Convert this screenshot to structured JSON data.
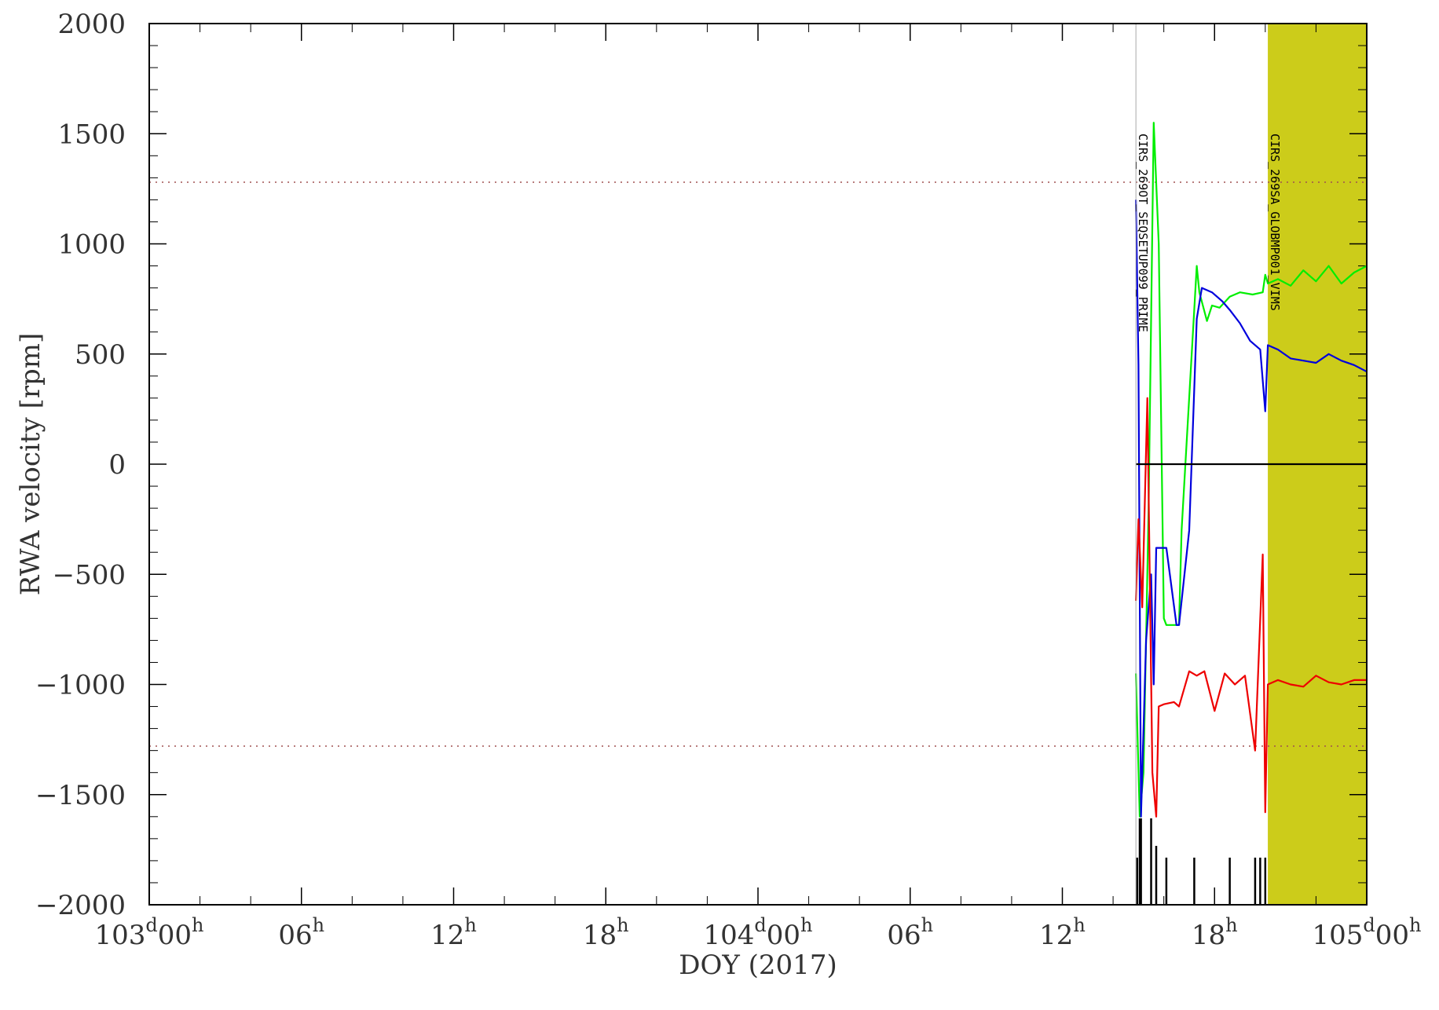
{
  "chart_data": {
    "type": "line",
    "title": "",
    "xlabel": "DOY (2017)",
    "ylabel": "RWA velocity [rpm]",
    "x_unit": "hours since 103d00h",
    "xlim": [
      0,
      48
    ],
    "ylim": [
      -2000,
      2000
    ],
    "y_ticks": [
      2000,
      1500,
      1000,
      500,
      0,
      -500,
      -1000,
      -1500,
      -2000
    ],
    "x_major_ticks": [
      {
        "x": 0,
        "label": "103",
        "day_sup": "d",
        "time": "00",
        "hour_sup": "h"
      },
      {
        "x": 6,
        "label": "06",
        "hour_sup": "h"
      },
      {
        "x": 12,
        "label": "12",
        "hour_sup": "h"
      },
      {
        "x": 18,
        "label": "18",
        "hour_sup": "h"
      },
      {
        "x": 24,
        "label": "104",
        "day_sup": "d",
        "time": "00",
        "hour_sup": "h"
      },
      {
        "x": 30,
        "label": "06",
        "hour_sup": "h"
      },
      {
        "x": 36,
        "label": "12",
        "hour_sup": "h"
      },
      {
        "x": 42,
        "label": "18",
        "hour_sup": "h"
      },
      {
        "x": 48,
        "label": "105",
        "day_sup": "d",
        "time": "00",
        "hour_sup": "h"
      }
    ],
    "limit_lines": [
      1280,
      -1280
    ],
    "shaded_region": {
      "x": [
        44.1,
        48
      ],
      "color": "#cccc1a"
    },
    "annotations": [
      {
        "x": 38.9,
        "text": "CIRS_269OT_SEQSETUP099_PRIME"
      },
      {
        "x": 44.1,
        "text": "CIRS_269SA_GLOBMP001_VIMS"
      }
    ],
    "series": [
      {
        "color": "#00ee00",
        "x": [
          38.9,
          39.05,
          39.2,
          39.4,
          39.6,
          39.8,
          40.0,
          40.1,
          40.6,
          40.7,
          41.3,
          41.4,
          41.7,
          41.9,
          42.2,
          42.6,
          43.0,
          43.5,
          43.9,
          44.0,
          44.1,
          44.5,
          45.0,
          45.5,
          46.0,
          46.5,
          47.0,
          47.5,
          48.0
        ],
        "y": [
          -950,
          -1600,
          -1400,
          -200,
          1550,
          1000,
          -700,
          -730,
          -730,
          -300,
          900,
          780,
          650,
          720,
          710,
          760,
          780,
          770,
          780,
          860,
          820,
          840,
          810,
          880,
          830,
          900,
          820,
          870,
          900
        ]
      },
      {
        "color": "#0000dd",
        "x": [
          38.9,
          39.0,
          39.1,
          39.3,
          39.5,
          39.6,
          39.7,
          40.1,
          40.5,
          40.6,
          41.0,
          41.3,
          41.5,
          41.9,
          42.3,
          42.6,
          43.0,
          43.4,
          43.8,
          44.0,
          44.1,
          44.5,
          45.0,
          45.5,
          46.0,
          46.5,
          47.0,
          47.5,
          48.0
        ],
        "y": [
          1200,
          450,
          -1600,
          -800,
          -500,
          -1000,
          -380,
          -380,
          -730,
          -730,
          -300,
          660,
          800,
          780,
          740,
          700,
          640,
          560,
          520,
          240,
          540,
          520,
          480,
          470,
          460,
          500,
          470,
          450,
          420
        ]
      },
      {
        "color": "#ee0000",
        "x": [
          38.9,
          39.0,
          39.15,
          39.35,
          39.55,
          39.7,
          39.8,
          40.0,
          40.4,
          40.6,
          41.0,
          41.3,
          41.6,
          42.0,
          42.4,
          42.8,
          43.2,
          43.6,
          43.9,
          44.0,
          44.1,
          44.5,
          45.0,
          45.5,
          46.0,
          46.5,
          47.0,
          47.5,
          48.0
        ],
        "y": [
          -620,
          -250,
          -650,
          300,
          -1400,
          -1600,
          -1100,
          -1090,
          -1080,
          -1100,
          -940,
          -960,
          -940,
          -1120,
          -950,
          -1000,
          -960,
          -1300,
          -410,
          -1580,
          -1000,
          -980,
          -1000,
          -1010,
          -960,
          -990,
          -1000,
          -980,
          -980
        ]
      },
      {
        "color": "#000000",
        "x": [
          38.9,
          48.0
        ],
        "y": [
          0,
          0
        ]
      }
    ]
  }
}
